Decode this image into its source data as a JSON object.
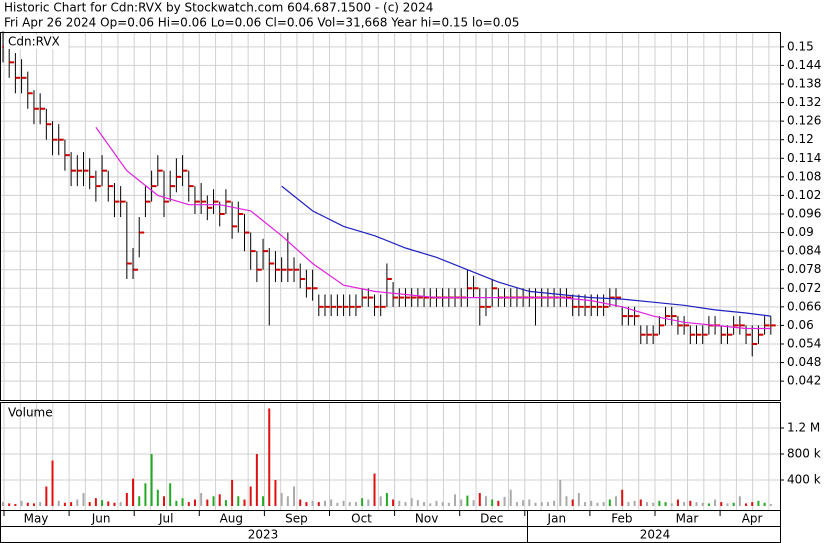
{
  "chart_data": {
    "type": "ohlc",
    "title": "Historic Chart for Cdn:RVX by Stockwatch.com 604.687.1500 - (c) 2024",
    "subtitle": "Fri Apr 26 2024  Op=0.06  Hi=0.06  Lo=0.06  Cl=0.06  Vol=31,668  Year hi=0.15  lo=0.05",
    "symbol": "Cdn:RVX",
    "bar_color": "#000000",
    "close_color": "#cc0000",
    "grid": true,
    "ylim": [
      0.0359,
      0.1548
    ],
    "yticks": [
      0.042,
      0.048,
      0.054,
      0.06,
      0.066,
      0.072,
      0.078,
      0.084,
      0.09,
      0.096,
      0.102,
      0.108,
      0.114,
      0.12,
      0.126,
      0.132,
      0.138,
      0.144,
      0.15
    ],
    "high": [
      0.155,
      0.152,
      0.148,
      0.146,
      0.142,
      0.136,
      0.135,
      0.13,
      0.126,
      0.125,
      0.12,
      0.116,
      0.115,
      0.116,
      0.114,
      0.11,
      0.115,
      0.11,
      0.106,
      0.105,
      0.1,
      0.085,
      0.095,
      0.105,
      0.11,
      0.115,
      0.11,
      0.11,
      0.114,
      0.115,
      0.11,
      0.105,
      0.106,
      0.102,
      0.104,
      0.1,
      0.104,
      0.1,
      0.1,
      0.096,
      0.09,
      0.084,
      0.088,
      0.085,
      0.084,
      0.082,
      0.09,
      0.082,
      0.08,
      0.078,
      0.078,
      0.07,
      0.07,
      0.07,
      0.07,
      0.07,
      0.07,
      0.07,
      0.072,
      0.072,
      0.07,
      0.07,
      0.08,
      0.074,
      0.072,
      0.072,
      0.072,
      0.072,
      0.072,
      0.072,
      0.072,
      0.072,
      0.072,
      0.072,
      0.072,
      0.078,
      0.076,
      0.072,
      0.072,
      0.075,
      0.072,
      0.072,
      0.072,
      0.072,
      0.072,
      0.072,
      0.072,
      0.072,
      0.072,
      0.072,
      0.072,
      0.072,
      0.07,
      0.07,
      0.07,
      0.07,
      0.07,
      0.07,
      0.072,
      0.072,
      0.066,
      0.066,
      0.066,
      0.06,
      0.06,
      0.06,
      0.063,
      0.066,
      0.066,
      0.063,
      0.063,
      0.06,
      0.06,
      0.06,
      0.063,
      0.063,
      0.06,
      0.06,
      0.063,
      0.063,
      0.06,
      0.06,
      0.06,
      0.063,
      0.063
    ],
    "low": [
      0.145,
      0.14,
      0.135,
      0.135,
      0.13,
      0.125,
      0.125,
      0.12,
      0.115,
      0.115,
      0.11,
      0.105,
      0.105,
      0.105,
      0.104,
      0.1,
      0.105,
      0.1,
      0.095,
      0.095,
      0.075,
      0.075,
      0.082,
      0.095,
      0.1,
      0.105,
      0.095,
      0.1,
      0.103,
      0.105,
      0.1,
      0.096,
      0.096,
      0.094,
      0.096,
      0.092,
      0.096,
      0.088,
      0.09,
      0.084,
      0.078,
      0.074,
      0.078,
      0.06,
      0.074,
      0.074,
      0.074,
      0.074,
      0.072,
      0.069,
      0.068,
      0.063,
      0.063,
      0.063,
      0.063,
      0.063,
      0.063,
      0.063,
      0.066,
      0.066,
      0.063,
      0.063,
      0.066,
      0.066,
      0.066,
      0.066,
      0.066,
      0.066,
      0.066,
      0.066,
      0.066,
      0.066,
      0.066,
      0.066,
      0.066,
      0.066,
      0.069,
      0.06,
      0.063,
      0.066,
      0.066,
      0.066,
      0.066,
      0.066,
      0.066,
      0.066,
      0.06,
      0.066,
      0.066,
      0.066,
      0.066,
      0.066,
      0.063,
      0.063,
      0.063,
      0.063,
      0.063,
      0.063,
      0.066,
      0.066,
      0.06,
      0.06,
      0.06,
      0.054,
      0.054,
      0.054,
      0.057,
      0.06,
      0.06,
      0.057,
      0.057,
      0.054,
      0.054,
      0.054,
      0.057,
      0.057,
      0.054,
      0.054,
      0.057,
      0.057,
      0.054,
      0.05,
      0.054,
      0.057,
      0.057
    ],
    "close": [
      0.15,
      0.145,
      0.14,
      0.14,
      0.135,
      0.13,
      0.13,
      0.125,
      0.12,
      0.12,
      0.115,
      0.11,
      0.11,
      0.11,
      0.108,
      0.105,
      0.11,
      0.105,
      0.1,
      0.1,
      0.08,
      0.078,
      0.09,
      0.1,
      0.105,
      0.11,
      0.1,
      0.105,
      0.108,
      0.11,
      0.105,
      0.1,
      0.1,
      0.098,
      0.1,
      0.096,
      0.1,
      0.092,
      0.096,
      0.09,
      0.084,
      0.078,
      0.084,
      0.08,
      0.078,
      0.078,
      0.078,
      0.078,
      0.075,
      0.072,
      0.072,
      0.066,
      0.066,
      0.066,
      0.066,
      0.066,
      0.066,
      0.066,
      0.069,
      0.069,
      0.066,
      0.066,
      0.075,
      0.069,
      0.069,
      0.069,
      0.069,
      0.069,
      0.069,
      0.069,
      0.069,
      0.069,
      0.069,
      0.069,
      0.069,
      0.072,
      0.072,
      0.066,
      0.066,
      0.072,
      0.069,
      0.069,
      0.069,
      0.069,
      0.069,
      0.069,
      0.069,
      0.069,
      0.069,
      0.069,
      0.069,
      0.069,
      0.066,
      0.066,
      0.066,
      0.066,
      0.066,
      0.066,
      0.069,
      0.069,
      0.063,
      0.063,
      0.063,
      0.057,
      0.057,
      0.057,
      0.06,
      0.063,
      0.063,
      0.06,
      0.06,
      0.057,
      0.057,
      0.057,
      0.06,
      0.06,
      0.057,
      0.057,
      0.06,
      0.06,
      0.057,
      0.054,
      0.057,
      0.06,
      0.06
    ],
    "moving_averages": [
      {
        "color": "#e020e0",
        "x": [
          15,
          20,
          25,
          30,
          35,
          40,
          45,
          50,
          55,
          60,
          65,
          70,
          75,
          80,
          85,
          90,
          95,
          100,
          105,
          110,
          115,
          120,
          124
        ],
        "values": [
          0.124,
          0.11,
          0.102,
          0.099,
          0.099,
          0.097,
          0.089,
          0.08,
          0.073,
          0.071,
          0.07,
          0.069,
          0.069,
          0.069,
          0.069,
          0.069,
          0.068,
          0.066,
          0.063,
          0.061,
          0.06,
          0.059,
          0.059
        ]
      },
      {
        "color": "#2020c0",
        "x": [
          45,
          50,
          55,
          60,
          65,
          70,
          75,
          80,
          85,
          90,
          95,
          100,
          105,
          110,
          115,
          120,
          124
        ],
        "values": [
          0.105,
          0.097,
          0.092,
          0.089,
          0.085,
          0.082,
          0.078,
          0.074,
          0.071,
          0.07,
          0.069,
          0.0685,
          0.0675,
          0.0665,
          0.065,
          0.064,
          0.063
        ]
      }
    ],
    "volume": {
      "label": "Volume",
      "up_color": "#22aa22",
      "down_color": "#dd1111",
      "flat_color": "#aaaaaa",
      "ylim": [
        0,
        1600000
      ],
      "yticks": [
        {
          "value": 400000,
          "label": "400 k"
        },
        {
          "value": 800000,
          "label": "800 k"
        },
        {
          "value": 1200000,
          "label": "1.2 M"
        }
      ],
      "values": [
        60000,
        40000,
        30000,
        80000,
        50000,
        40000,
        60000,
        300000,
        700000,
        80000,
        50000,
        60000,
        100000,
        200000,
        60000,
        120000,
        90000,
        70000,
        50000,
        60000,
        200000,
        420000,
        150000,
        350000,
        800000,
        250000,
        150000,
        350000,
        80000,
        120000,
        60000,
        100000,
        200000,
        100000,
        150000,
        180000,
        90000,
        400000,
        150000,
        100000,
        300000,
        800000,
        150000,
        1500000,
        400000,
        200000,
        150000,
        300000,
        100000,
        60000,
        80000,
        60000,
        80000,
        100000,
        50000,
        80000,
        60000,
        60000,
        120000,
        100000,
        500000,
        150000,
        200000,
        100000,
        80000,
        60000,
        120000,
        90000,
        60000,
        40000,
        80000,
        60000,
        50000,
        180000,
        100000,
        160000,
        90000,
        200000,
        150000,
        100000,
        80000,
        140000,
        250000,
        60000,
        90000,
        100000,
        50000,
        60000,
        60000,
        80000,
        400000,
        150000,
        100000,
        200000,
        60000,
        80000,
        50000,
        60000,
        100000,
        150000,
        250000,
        60000,
        80000,
        100000,
        60000,
        50000,
        80000,
        60000,
        40000,
        100000,
        60000,
        80000,
        60000,
        50000,
        40000,
        100000,
        60000,
        40000,
        50000,
        150000,
        40000,
        60000,
        80000,
        50000,
        30000
      ]
    },
    "months": [
      "May",
      "Jun",
      "Jul",
      "Aug",
      "Sep",
      "Oct",
      "Nov",
      "Dec",
      "Jan",
      "Feb",
      "Mar",
      "Apr"
    ],
    "years": [
      "2023",
      "2024"
    ]
  }
}
